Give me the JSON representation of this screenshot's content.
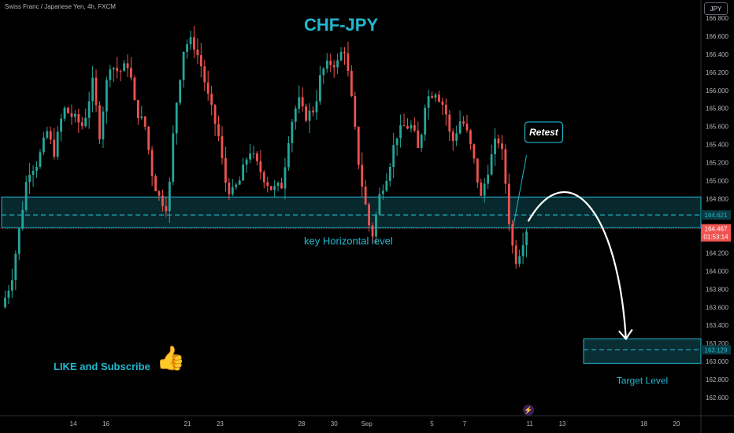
{
  "header": {
    "symbol": "Swiss Franc / Japanese Yen, 4h, FXCM",
    "currency": "JPY",
    "title": "CHF-JPY"
  },
  "annotations": {
    "key_level": "key Horizontal level",
    "retest": "Retest",
    "target": "Target Level",
    "like": "LIKE and Subscribe"
  },
  "price_scale": {
    "current_price": "164.467",
    "countdown": "01:53:14",
    "key_level_price": "164.621",
    "target_price": "163.129"
  },
  "icons": {
    "like": "thumbs-up-icon",
    "lightning": "lightning-icon"
  },
  "colors": {
    "up": "#26a69a",
    "down": "#ef5350",
    "zone": "#22b8cf",
    "arrow": "#ffffff",
    "current_price": "#ef5350"
  },
  "chart_data": {
    "type": "candlestick",
    "title": "CHF-JPY",
    "ylim": [
      162.4,
      167.0
    ],
    "y_ticks": [
      162.6,
      162.8,
      163.0,
      163.2,
      163.4,
      163.6,
      163.8,
      164.0,
      164.2,
      164.4,
      164.6,
      164.8,
      165.0,
      165.2,
      165.4,
      165.6,
      165.8,
      166.0,
      166.2,
      166.4,
      166.6,
      166.8
    ],
    "y_tick_labels": [
      "162.600",
      "162.800",
      "163.000",
      "163.200",
      "163.400",
      "163.600",
      "163.800",
      "164.000",
      "164.200",
      "164.400",
      "164.600",
      "164.800",
      "165.000",
      "165.200",
      "165.400",
      "165.600",
      "165.800",
      "166.000",
      "166.200",
      "166.400",
      "166.600",
      "166.800"
    ],
    "x_ticks": [
      {
        "label": "14",
        "day": 14
      },
      {
        "label": "16",
        "day": 16
      },
      {
        "label": "21",
        "day": 21
      },
      {
        "label": "23",
        "day": 23
      },
      {
        "label": "28",
        "day": 28
      },
      {
        "label": "30",
        "day": 30
      },
      {
        "label": "Sep",
        "day": 32
      },
      {
        "label": "5",
        "day": 36
      },
      {
        "label": "7",
        "day": 38
      },
      {
        "label": "11",
        "day": 42
      },
      {
        "label": "13",
        "day": 44
      },
      {
        "label": "18",
        "day": 49
      },
      {
        "label": "20",
        "day": 51
      }
    ],
    "x_range_days": [
      9.5,
      52.5
    ],
    "price_path": [
      [
        9.6,
        163.6
      ],
      [
        10.2,
        163.9
      ],
      [
        10.8,
        164.6
      ],
      [
        11.2,
        165.1
      ],
      [
        11.8,
        165.2
      ],
      [
        12.4,
        165.55
      ],
      [
        12.8,
        165.3
      ],
      [
        13.4,
        165.8
      ],
      [
        14.0,
        165.7
      ],
      [
        14.6,
        165.6
      ],
      [
        15.2,
        166.1
      ],
      [
        15.6,
        165.5
      ],
      [
        16.2,
        166.3
      ],
      [
        16.8,
        166.2
      ],
      [
        17.4,
        166.3
      ],
      [
        17.8,
        165.8
      ],
      [
        18.4,
        165.6
      ],
      [
        18.9,
        165.0
      ],
      [
        19.3,
        164.8
      ],
      [
        19.8,
        164.7
      ],
      [
        20.2,
        165.7
      ],
      [
        20.8,
        166.5
      ],
      [
        21.3,
        166.55
      ],
      [
        21.8,
        166.3
      ],
      [
        22.3,
        165.9
      ],
      [
        22.9,
        165.5
      ],
      [
        23.3,
        165.0
      ],
      [
        23.7,
        164.85
      ],
      [
        24.2,
        165.0
      ],
      [
        24.8,
        165.35
      ],
      [
        25.2,
        165.2
      ],
      [
        25.8,
        165.0
      ],
      [
        26.2,
        164.9
      ],
      [
        26.8,
        164.95
      ],
      [
        27.3,
        165.6
      ],
      [
        27.8,
        165.9
      ],
      [
        28.2,
        165.7
      ],
      [
        28.8,
        165.8
      ],
      [
        29.2,
        166.2
      ],
      [
        29.7,
        166.3
      ],
      [
        30.2,
        166.3
      ],
      [
        30.6,
        166.5
      ],
      [
        31.0,
        166.0
      ],
      [
        31.5,
        165.2
      ],
      [
        31.8,
        164.85
      ],
      [
        32.3,
        164.35
      ],
      [
        32.8,
        164.85
      ],
      [
        33.3,
        165.1
      ],
      [
        33.8,
        165.5
      ],
      [
        34.3,
        165.6
      ],
      [
        34.8,
        165.6
      ],
      [
        35.2,
        165.3
      ],
      [
        35.6,
        165.9
      ],
      [
        36.2,
        166.0
      ],
      [
        36.8,
        165.8
      ],
      [
        37.2,
        165.4
      ],
      [
        37.8,
        165.7
      ],
      [
        38.2,
        165.5
      ],
      [
        38.6,
        165.2
      ],
      [
        39.0,
        164.8
      ],
      [
        39.4,
        165.1
      ],
      [
        39.7,
        165.3
      ],
      [
        40.0,
        165.5
      ],
      [
        40.3,
        165.3
      ],
      [
        40.5,
        165.0
      ],
      [
        40.7,
        164.6
      ],
      [
        40.9,
        164.3
      ],
      [
        41.2,
        164.1
      ],
      [
        41.5,
        164.3
      ],
      [
        41.8,
        164.467
      ]
    ],
    "key_level": {
      "label": "key Horizontal level",
      "price": 164.621,
      "range": [
        164.48,
        164.82
      ]
    },
    "target_zone": {
      "label": "Target Level",
      "price": 163.129,
      "range": [
        162.98,
        163.25
      ]
    },
    "current_price": 164.467
  }
}
